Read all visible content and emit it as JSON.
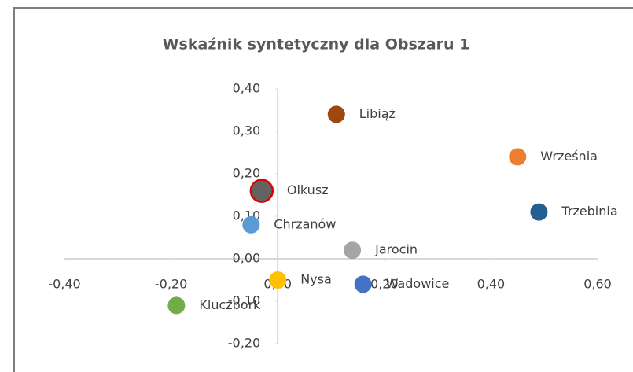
{
  "chart_data": {
    "type": "scatter",
    "title": "Wskaźnik syntetyczny dla Obszaru 1",
    "series": [
      {
        "name": "Libiąż",
        "color": "#9e480e",
        "x": [
          0.11
        ],
        "values": [
          0.34
        ]
      },
      {
        "name": "Września",
        "color": "#ed7d31",
        "x": [
          0.45
        ],
        "values": [
          0.24
        ]
      },
      {
        "name": "Trzebinia",
        "color": "#255e91",
        "x": [
          0.49
        ],
        "values": [
          0.11
        ]
      },
      {
        "name": "Olkusz",
        "color": "#636363",
        "edgecolor": "#e00000",
        "x": [
          -0.03
        ],
        "values": [
          0.16
        ]
      },
      {
        "name": "Chrzanów",
        "color": "#5b9bd5",
        "x": [
          -0.05
        ],
        "values": [
          0.08
        ]
      },
      {
        "name": "Jarocin",
        "color": "#a5a5a5",
        "x": [
          0.14
        ],
        "values": [
          0.02
        ]
      },
      {
        "name": "Nysa",
        "color": "#ffc000",
        "x": [
          0.0
        ],
        "values": [
          -0.05
        ]
      },
      {
        "name": "Wadowice",
        "color": "#4472c4",
        "x": [
          0.16
        ],
        "values": [
          -0.06
        ]
      },
      {
        "name": "Kluczbork",
        "color": "#70ad47",
        "x": [
          -0.19
        ],
        "values": [
          -0.11
        ]
      }
    ],
    "xlim": [
      -0.4,
      0.6
    ],
    "xticks": [
      {
        "value": -0.4,
        "label": "-0,40"
      },
      {
        "value": -0.2,
        "label": "-0,20"
      },
      {
        "value": 0,
        "label": "0,00"
      },
      {
        "value": 0.2,
        "label": "0,20"
      },
      {
        "value": 0.4,
        "label": "0,40"
      },
      {
        "value": 0.6,
        "label": "0,60"
      }
    ],
    "ylim": [
      -0.2,
      0.4
    ],
    "yticks": [
      {
        "value": -0.2,
        "label": "-0,20"
      },
      {
        "value": -0.1,
        "label": "-0,10"
      },
      {
        "value": 0,
        "label": "0,00"
      },
      {
        "value": 0.1,
        "label": "0,10"
      },
      {
        "value": 0.2,
        "label": "0,20"
      },
      {
        "value": 0.3,
        "label": "0,30"
      },
      {
        "value": 0.4,
        "label": "0,40"
      }
    ],
    "grid": false
  }
}
